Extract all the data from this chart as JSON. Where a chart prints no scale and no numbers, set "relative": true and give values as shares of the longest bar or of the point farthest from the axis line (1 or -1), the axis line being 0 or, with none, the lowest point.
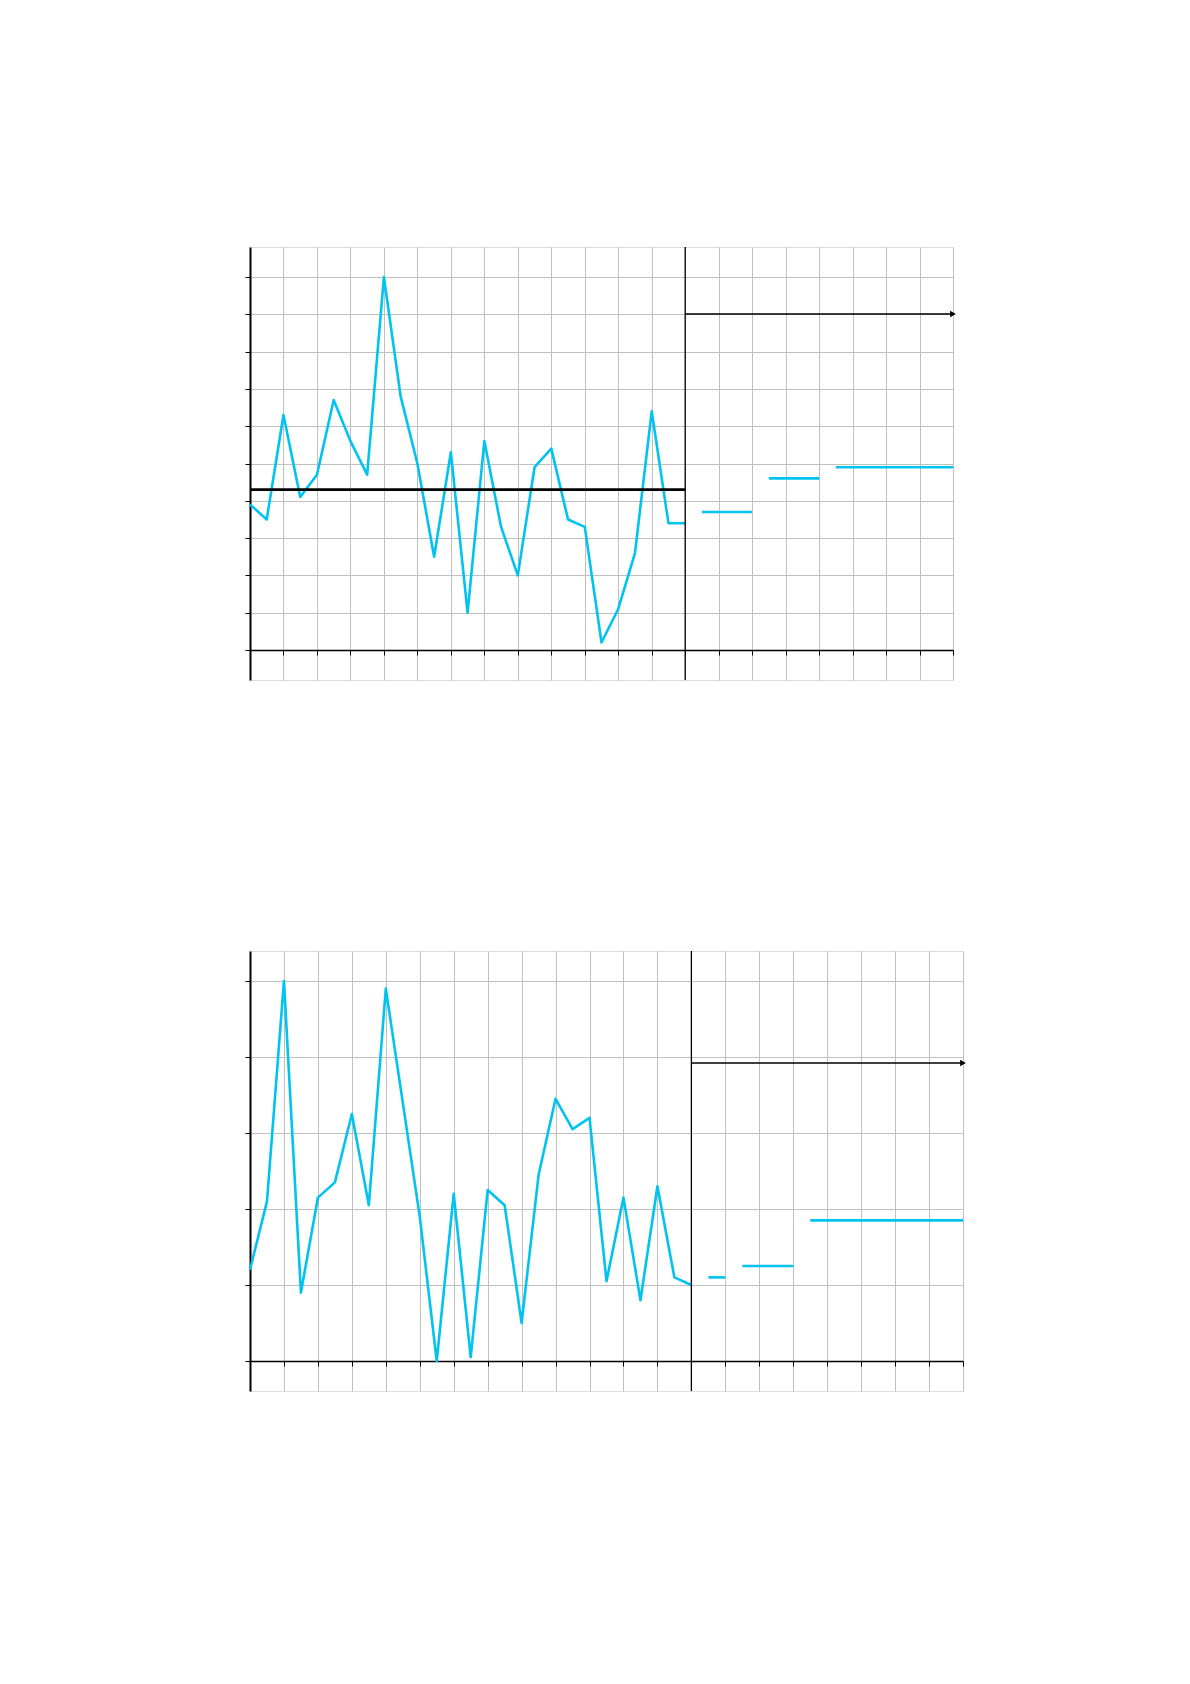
{
  "chart_data": [
    {
      "type": "line",
      "relative": true,
      "grid": true,
      "categories": [
        null,
        null,
        null,
        null,
        null,
        null,
        null,
        null,
        null,
        null,
        null,
        null,
        null,
        null,
        null,
        null,
        null,
        null,
        null,
        null,
        null,
        null,
        null,
        null,
        null,
        null,
        null,
        null,
        null,
        null,
        null,
        null,
        null,
        null,
        null,
        null,
        null,
        null,
        null,
        null,
        null,
        null,
        null
      ],
      "series": [
        {
          "color": "#00c3f0",
          "values": [
            0.39,
            0.35,
            0.63,
            0.41,
            0.47,
            0.67,
            0.56,
            0.47,
            1,
            0.68,
            0.5,
            0.25,
            0.53,
            0.1,
            0.56,
            0.33,
            0.2,
            0.49,
            0.54,
            0.35,
            0.33,
            0.02,
            0.11,
            0.26,
            0.64,
            0.34,
            0.34,
            null,
            null,
            null,
            null,
            null,
            null,
            null,
            null,
            null,
            null,
            null,
            null,
            null,
            null,
            null,
            null
          ]
        },
        {
          "color": "#00c3f0",
          "values": [
            null,
            null,
            null,
            null,
            null,
            null,
            null,
            null,
            null,
            null,
            null,
            null,
            null,
            null,
            null,
            null,
            null,
            null,
            null,
            null,
            null,
            null,
            null,
            null,
            null,
            null,
            null,
            0.37,
            0.37,
            0.37,
            0.37,
            null,
            null,
            null,
            null,
            null,
            null,
            null,
            null,
            null,
            null,
            null,
            null
          ]
        },
        {
          "color": "#00c3f0",
          "values": [
            null,
            null,
            null,
            null,
            null,
            null,
            null,
            null,
            null,
            null,
            null,
            null,
            null,
            null,
            null,
            null,
            null,
            null,
            null,
            null,
            null,
            null,
            null,
            null,
            null,
            null,
            null,
            null,
            null,
            null,
            null,
            0.46,
            0.46,
            0.46,
            0.46,
            null,
            null,
            null,
            null,
            null,
            null,
            null,
            null
          ]
        },
        {
          "color": "#00c3f0",
          "values": [
            null,
            null,
            null,
            null,
            null,
            null,
            null,
            null,
            null,
            null,
            null,
            null,
            null,
            null,
            null,
            null,
            null,
            null,
            null,
            null,
            null,
            null,
            null,
            null,
            null,
            null,
            null,
            null,
            null,
            null,
            null,
            null,
            null,
            null,
            null,
            0.49,
            0.49,
            0.49,
            0.49,
            0.49,
            0.49,
            0.49,
            0.49
          ]
        },
        {
          "color": "#000000",
          "values": [
            0.43,
            0.43,
            0.43,
            0.43,
            0.43,
            0.43,
            0.43,
            0.43,
            0.43,
            0.43,
            0.43,
            0.43,
            0.43,
            0.43,
            0.43,
            0.43,
            0.43,
            0.43,
            0.43,
            0.43,
            0.43,
            0.43,
            0.43,
            0.43,
            0.43,
            0.43,
            0.43,
            null,
            null,
            null,
            null,
            null,
            null,
            null,
            null,
            null,
            null,
            null,
            null,
            null,
            null,
            null,
            null
          ]
        }
      ]
    },
    {
      "type": "line",
      "relative": true,
      "grid": true,
      "categories": [
        null,
        null,
        null,
        null,
        null,
        null,
        null,
        null,
        null,
        null,
        null,
        null,
        null,
        null,
        null,
        null,
        null,
        null,
        null,
        null,
        null,
        null,
        null,
        null,
        null,
        null,
        null,
        null,
        null,
        null,
        null,
        null,
        null,
        null,
        null,
        null,
        null,
        null,
        null,
        null,
        null,
        null,
        null
      ],
      "series": [
        {
          "color": "#00c3f0",
          "values": [
            0.24,
            0.42,
            1,
            0.18,
            0.43,
            0.47,
            0.65,
            0.41,
            0.98,
            0.68,
            0.38,
            0,
            0.44,
            0.01,
            0.45,
            0.41,
            0.1,
            0.49,
            0.69,
            0.61,
            0.64,
            0.21,
            0.43,
            0.16,
            0.46,
            0.22,
            0.2,
            null,
            null,
            null,
            null,
            null,
            null,
            null,
            null,
            null,
            null,
            null,
            null,
            null,
            null,
            null,
            null
          ]
        },
        {
          "color": "#00c3f0",
          "values": [
            null,
            null,
            null,
            null,
            null,
            null,
            null,
            null,
            null,
            null,
            null,
            null,
            null,
            null,
            null,
            null,
            null,
            null,
            null,
            null,
            null,
            null,
            null,
            null,
            null,
            null,
            null,
            0.22,
            0.22,
            null,
            null,
            null,
            null,
            null,
            null,
            null,
            null,
            null,
            null,
            null,
            null,
            null,
            null
          ]
        },
        {
          "color": "#00c3f0",
          "values": [
            null,
            null,
            null,
            null,
            null,
            null,
            null,
            null,
            null,
            null,
            null,
            null,
            null,
            null,
            null,
            null,
            null,
            null,
            null,
            null,
            null,
            null,
            null,
            null,
            null,
            null,
            null,
            null,
            null,
            0.25,
            0.25,
            0.25,
            0.25,
            null,
            null,
            null,
            null,
            null,
            null,
            null,
            null,
            null,
            null
          ]
        },
        {
          "color": "#00c3f0",
          "values": [
            null,
            null,
            null,
            null,
            null,
            null,
            null,
            null,
            null,
            null,
            null,
            null,
            null,
            null,
            null,
            null,
            null,
            null,
            null,
            null,
            null,
            null,
            null,
            null,
            null,
            null,
            null,
            null,
            null,
            null,
            null,
            null,
            null,
            0.37,
            0.37,
            0.37,
            0.37,
            0.37,
            0.37,
            0.37,
            0.37,
            0.37,
            0.37
          ]
        }
      ]
    }
  ]
}
